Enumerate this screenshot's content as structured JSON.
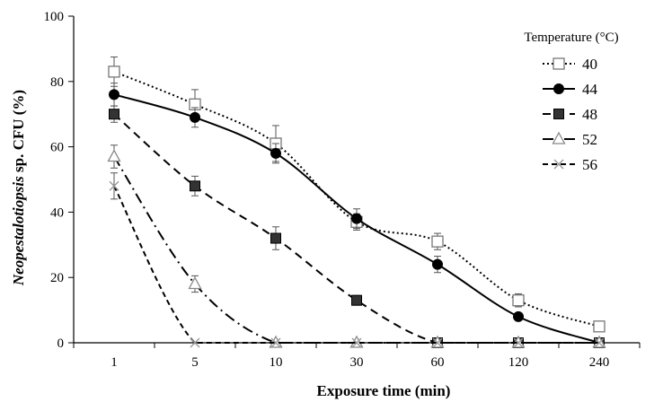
{
  "chart_data": {
    "type": "line",
    "xlabel": "Exposure time (min)",
    "ylabel_italic": "Neopestalotiopsis",
    "ylabel_rest": " sp. CFU (%)",
    "categories": [
      "1",
      "5",
      "10",
      "30",
      "60",
      "120",
      "240"
    ],
    "ylim": [
      0,
      100
    ],
    "yticks": [
      "0",
      "20",
      "40",
      "60",
      "80",
      "100"
    ],
    "grid": false,
    "legend": {
      "title": "Temperature (°C)",
      "position": "top-right"
    },
    "series": [
      {
        "name": "40",
        "values": [
          83,
          73,
          61,
          37,
          31,
          13,
          5
        ],
        "errors": [
          4.5,
          4.5,
          5.5,
          2.5,
          2.5,
          2,
          0
        ],
        "marker": "square-open",
        "dash": "dotted",
        "color": "#000000"
      },
      {
        "name": "44",
        "values": [
          76,
          69,
          58,
          38,
          24,
          8,
          0
        ],
        "errors": [
          3.5,
          3,
          3,
          3,
          2.5,
          1,
          0
        ],
        "marker": "circle-filled",
        "dash": "solid",
        "color": "#000000"
      },
      {
        "name": "48",
        "values": [
          70,
          48,
          32,
          13,
          0,
          0,
          0
        ],
        "errors": [
          2.5,
          3,
          3.5,
          1.5,
          0,
          0,
          0
        ],
        "marker": "square-filled",
        "dash": "dashed",
        "color": "#000000"
      },
      {
        "name": "52",
        "values": [
          57,
          18,
          0,
          0,
          0,
          0,
          0
        ],
        "errors": [
          3.5,
          2.5,
          0,
          0,
          0,
          0,
          0
        ],
        "marker": "triangle-open",
        "dash": "dashdot",
        "color": "#000000"
      },
      {
        "name": "56",
        "values": [
          48,
          0,
          0,
          0,
          0,
          0,
          0
        ],
        "errors": [
          4,
          0,
          0,
          0,
          0,
          0,
          0
        ],
        "marker": "x-cross",
        "dash": "short-dash",
        "color": "#000000"
      }
    ]
  }
}
